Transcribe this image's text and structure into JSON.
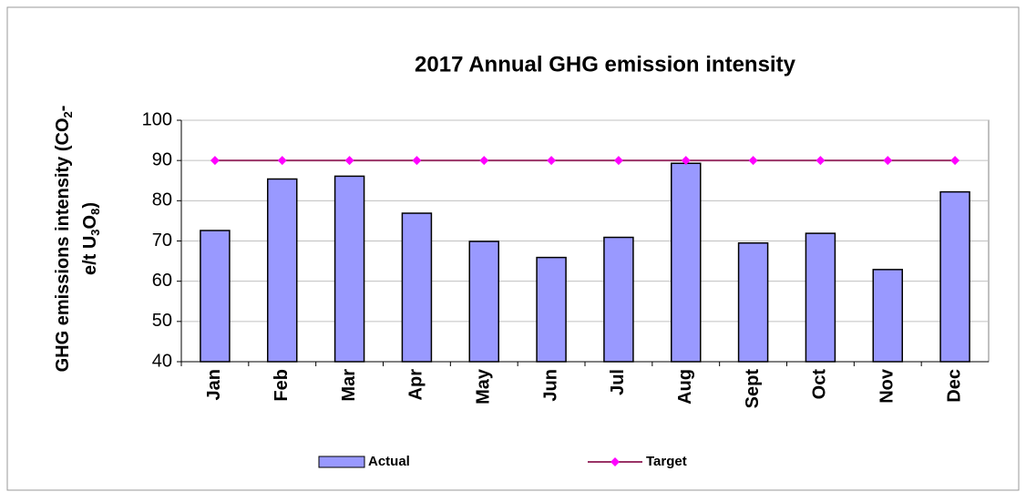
{
  "chart_data": {
    "type": "bar",
    "title": "2017 Annual GHG emission intensity",
    "ylabel": [
      [
        {
          "text": "GHG emissions intensity (CO"
        },
        {
          "text": "2",
          "baseline": "sub"
        },
        {
          "text": "-"
        }
      ],
      [
        {
          "text": "e/t U"
        },
        {
          "text": "3",
          "baseline": "sub"
        },
        {
          "text": "O"
        },
        {
          "text": "8",
          "baseline": "sub"
        },
        {
          "text": ")"
        }
      ]
    ],
    "categories": [
      "Jan",
      "Feb",
      "Mar",
      "Apr",
      "May",
      "Jun",
      "Jul",
      "Aug",
      "Sept",
      "Oct",
      "Nov",
      "Dec"
    ],
    "series": [
      {
        "name": "Actual",
        "type": "bar",
        "color": "#9999ff",
        "values": [
          72.6,
          85.4,
          86.1,
          76.9,
          69.9,
          65.9,
          70.9,
          89.3,
          69.5,
          71.9,
          62.9,
          82.2
        ]
      },
      {
        "name": "Target",
        "type": "line",
        "color": "#993366",
        "marker_color": "#ff00ff",
        "values": [
          90,
          90,
          90,
          90,
          90,
          90,
          90,
          90,
          90,
          90,
          90,
          90
        ]
      }
    ],
    "ylim": [
      40,
      100
    ],
    "yticks": [
      40,
      50,
      60,
      70,
      80,
      90,
      100
    ],
    "grid": true,
    "legend": "bottom"
  }
}
